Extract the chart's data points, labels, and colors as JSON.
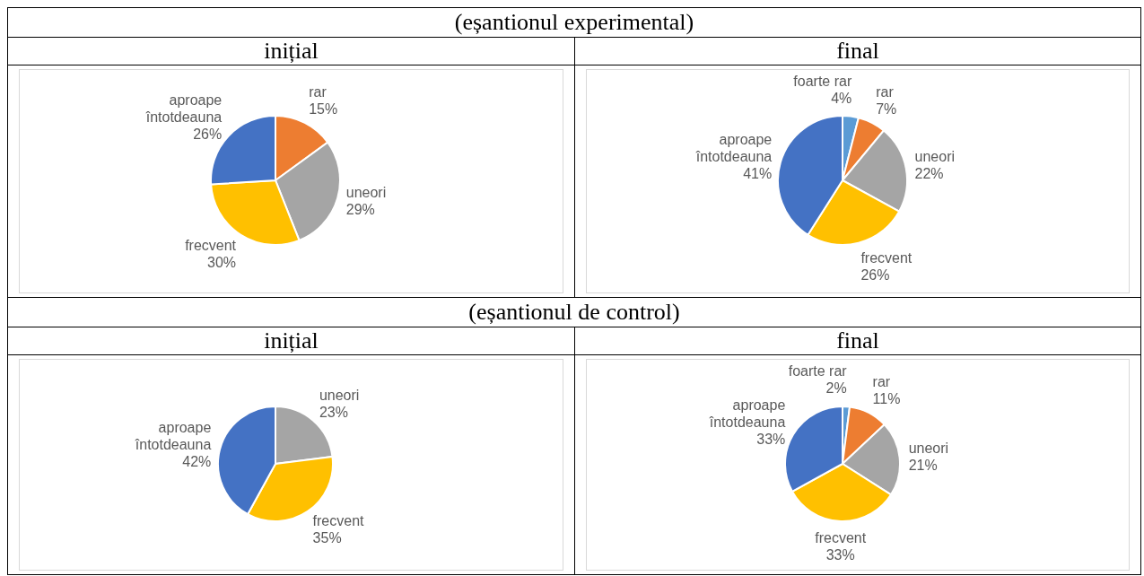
{
  "chart_data": [
    {
      "type": "pie",
      "title": "inițial",
      "annotations": [
        "(eșantionul experimental)"
      ],
      "categories": [
        "rar",
        "uneori",
        "frecvent",
        "aproape întotdeauna"
      ],
      "values": [
        15,
        29,
        30,
        26
      ],
      "value_labels": [
        "15%",
        "29%",
        "30%",
        "26%"
      ],
      "colors": [
        "#ed7d31",
        "#a5a5a5",
        "#ffc000",
        "#4472c4"
      ]
    },
    {
      "type": "pie",
      "title": "final",
      "categories": [
        "foarte rar",
        "rar",
        "uneori",
        "frecvent",
        "aproape întotdeauna"
      ],
      "values": [
        4,
        7,
        22,
        26,
        41
      ],
      "value_labels": [
        "4%",
        "7%",
        "22%",
        "26%",
        "41%"
      ],
      "colors": [
        "#5b9bd5",
        "#ed7d31",
        "#a5a5a5",
        "#ffc000",
        "#4472c4"
      ]
    },
    {
      "type": "pie",
      "title": "inițial",
      "annotations": [
        "(eșantionul de control)"
      ],
      "categories": [
        "uneori",
        "frecvent",
        "aproape întotdeauna"
      ],
      "values": [
        23,
        35,
        42
      ],
      "value_labels": [
        "23%",
        "35%",
        "42%"
      ],
      "colors": [
        "#a5a5a5",
        "#ffc000",
        "#4472c4"
      ]
    },
    {
      "type": "pie",
      "title": "final",
      "categories": [
        "foarte rar",
        "rar",
        "uneori",
        "frecvent",
        "aproape întotdeauna"
      ],
      "values": [
        2,
        11,
        21,
        33,
        33
      ],
      "value_labels": [
        "2%",
        "11%",
        "21%",
        "33%",
        "33%"
      ],
      "colors": [
        "#5b9bd5",
        "#ed7d31",
        "#a5a5a5",
        "#ffc000",
        "#4472c4"
      ]
    }
  ]
}
